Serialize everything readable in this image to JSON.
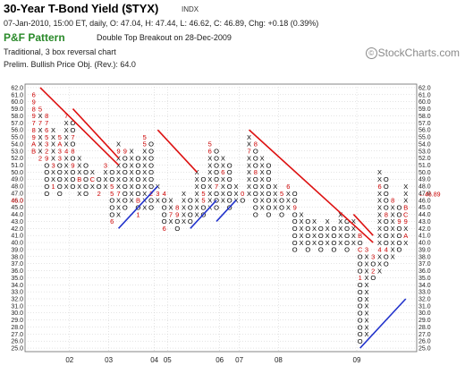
{
  "header": {
    "title": "30-Year T-Bond Yield ($TYX)",
    "exchange": "INDX",
    "ohlc_line": "07-Jan-2010, 15:00 ET, daily, O: 47.04, H: 47.44, L: 46.62, C: 46.89, Chg: +0.18 (0.39%)",
    "pf_name": "P&F Pattern",
    "pf_signal": "Double Top Breakout on 28-Dec-2009",
    "meta_line1": "Traditional, 3 box reversal chart",
    "meta_line2": "Prelim. Bullish Price Obj. (Rev.): 64.0",
    "logo": "StockCharts.com",
    "logo_mark": "©"
  },
  "colors": {
    "x_mark": "#000000",
    "o_mark": "#000000",
    "month_mark": "#cc0000",
    "resistance_line": "#dd1111",
    "support_line": "#2233cc",
    "grid": "#c8c8c8",
    "title_green": "#2a8a2a",
    "last_price": "#cc0000"
  },
  "chart_data": {
    "type": "point-and-figure",
    "box_size": 1.0,
    "reversal": 3,
    "y_range": [
      25,
      62
    ],
    "y_ticks": [
      "25.0",
      "26.0",
      "27.0",
      "28.0",
      "29.0",
      "30.0",
      "31.0",
      "32.0",
      "33.0",
      "34.0",
      "35.0",
      "36.0",
      "37.0",
      "38.0",
      "39.0",
      "40.0",
      "41.0",
      "42.0",
      "43.0",
      "44.0",
      "45.0",
      "46.0",
      "47.0",
      "48.0",
      "49.0",
      "50.0",
      "51.0",
      "52.0",
      "53.0",
      "54.0",
      "55.0",
      "56.0",
      "57.0",
      "58.0",
      "59.0",
      "60.0",
      "61.0",
      "62.0"
    ],
    "x_labels": [
      {
        "label": "02",
        "col": 6
      },
      {
        "label": "03",
        "col": 12
      },
      {
        "label": "04",
        "col": 19
      },
      {
        "label": "05",
        "col": 21
      },
      {
        "label": "06",
        "col": 29
      },
      {
        "label": "07",
        "col": 32
      },
      {
        "label": "08",
        "col": 38
      },
      {
        "label": "09",
        "col": 50
      }
    ],
    "last_price": "46.89",
    "columns": [
      {
        "type": "O",
        "low": 53,
        "high": 61,
        "labels": {
          "61": "6",
          "60": "9",
          "59": "8",
          "58": "9",
          "57": "7",
          "56": "8",
          "55": "9",
          "54": "A",
          "53": "B"
        }
      },
      {
        "type": "X",
        "low": 52,
        "high": 59,
        "labels": {
          "52": "2",
          "57": "7",
          "59": "5"
        }
      },
      {
        "type": "O",
        "low": 47,
        "high": 58,
        "labels": {
          "58": "8",
          "57": "7",
          "56": "6",
          "55": "5",
          "54": "3",
          "53": "2",
          "52": "9"
        }
      },
      {
        "type": "X",
        "low": 48,
        "high": 56,
        "labels": {
          "48": "1",
          "51": "3"
        }
      },
      {
        "type": "O",
        "low": 47,
        "high": 55,
        "labels": {
          "55": "5",
          "54": "A",
          "53": "3",
          "52": "3"
        }
      },
      {
        "type": "X",
        "low": 48,
        "high": 58,
        "labels": {
          "53": "4",
          "58": "7"
        }
      },
      {
        "type": "O",
        "low": 48,
        "high": 57,
        "labels": {
          "55": "7",
          "53": "8",
          "51": "9"
        }
      },
      {
        "type": "X",
        "low": 47,
        "high": 52,
        "labels": {
          "49": "B"
        }
      },
      {
        "type": "O",
        "low": 47,
        "high": 51
      },
      {
        "type": "X",
        "low": 48,
        "high": 50,
        "labels": {
          "49": "C"
        }
      },
      {
        "type": "O",
        "low": 47,
        "high": 49,
        "labels": {
          "47": "2"
        }
      },
      {
        "type": "X",
        "low": 48,
        "high": 51,
        "labels": {
          "51": "3"
        }
      },
      {
        "type": "O",
        "low": 43,
        "high": 50,
        "labels": {
          "48": "5",
          "47": "5",
          "43": "6"
        }
      },
      {
        "type": "X",
        "low": 44,
        "high": 54,
        "labels": {
          "47": "7",
          "53": "9"
        }
      },
      {
        "type": "O",
        "low": 45,
        "high": 53,
        "labels": {
          "53": "9"
        }
      },
      {
        "type": "X",
        "low": 46,
        "high": 53
      },
      {
        "type": "O",
        "low": 44,
        "high": 52,
        "labels": {
          "46": "B",
          "44": "1"
        }
      },
      {
        "type": "X",
        "low": 45,
        "high": 55,
        "labels": {
          "55": "5",
          "54": "5"
        }
      },
      {
        "type": "O",
        "low": 45,
        "high": 54,
        "labels": {
          "47": "2"
        }
      },
      {
        "type": "X",
        "low": 46,
        "high": 48,
        "labels": {
          "47": "3"
        }
      },
      {
        "type": "O",
        "low": 42,
        "high": 47,
        "labels": {
          "47": "4",
          "42": "6"
        }
      },
      {
        "type": "X",
        "low": 43,
        "high": 46,
        "labels": {
          "44": "7"
        }
      },
      {
        "type": "O",
        "low": 42,
        "high": 45,
        "labels": {
          "45": "8",
          "44": "9"
        }
      },
      {
        "type": "X",
        "low": 43,
        "high": 47
      },
      {
        "type": "O",
        "low": 43,
        "high": 46
      },
      {
        "type": "X",
        "low": 44,
        "high": 50
      },
      {
        "type": "O",
        "low": 44,
        "high": 49,
        "labels": {
          "47": "5",
          "46": "5"
        }
      },
      {
        "type": "X",
        "low": 45,
        "high": 54,
        "labels": {
          "54": "5",
          "53": "6"
        }
      },
      {
        "type": "O",
        "low": 45,
        "high": 53,
        "labels": {
          "48": "7"
        }
      },
      {
        "type": "X",
        "low": 46,
        "high": 52,
        "labels": {
          "50": "6"
        }
      },
      {
        "type": "O",
        "low": 45,
        "high": 51
      },
      {
        "type": "X",
        "low": 46,
        "high": 48
      },
      {
        "type": "O",
        "low": 46,
        "high": 47,
        "labels": {
          "47": "0"
        }
      },
      {
        "type": "X",
        "low": 47,
        "high": 55,
        "labels": {
          "53": "7"
        }
      },
      {
        "type": "O",
        "low": 44,
        "high": 54,
        "labels": {
          "54": "8",
          "50": "8"
        }
      },
      {
        "type": "X",
        "low": 45,
        "high": 52
      },
      {
        "type": "O",
        "low": 44,
        "high": 51
      },
      {
        "type": "X",
        "low": 45,
        "high": 48
      },
      {
        "type": "O",
        "low": 44,
        "high": 47,
        "labels": {
          "47": "5"
        }
      },
      {
        "type": "X",
        "low": 45,
        "high": 48,
        "labels": {
          "48": "6"
        }
      },
      {
        "type": "O",
        "low": 39,
        "high": 47,
        "labels": {
          "45": "9"
        }
      },
      {
        "type": "X",
        "low": 40,
        "high": 44
      },
      {
        "type": "O",
        "low": 39,
        "high": 43
      },
      {
        "type": "X",
        "low": 40,
        "high": 43
      },
      {
        "type": "O",
        "low": 39,
        "high": 42
      },
      {
        "type": "X",
        "low": 40,
        "high": 43
      },
      {
        "type": "O",
        "low": 39,
        "high": 42
      },
      {
        "type": "X",
        "low": 40,
        "high": 44
      },
      {
        "type": "O",
        "low": 39,
        "high": 43
      },
      {
        "type": "X",
        "low": 40,
        "high": 43
      },
      {
        "type": "O",
        "low": 26,
        "high": 41,
        "labels": {
          "41": "B",
          "39": "C",
          "35": "1"
        }
      },
      {
        "type": "X",
        "low": 27,
        "high": 39,
        "labels": {
          "39": "3"
        }
      },
      {
        "type": "O",
        "low": 35,
        "high": 38,
        "labels": {
          "38": "3",
          "36": "2"
        }
      },
      {
        "type": "X",
        "low": 36,
        "high": 50,
        "labels": {
          "39": "4",
          "48": "6"
        }
      },
      {
        "type": "O",
        "low": 37,
        "high": 49,
        "labels": {
          "39": "4",
          "44": "8"
        }
      },
      {
        "type": "X",
        "low": 38,
        "high": 46,
        "labels": {
          "46": "8"
        }
      },
      {
        "type": "O",
        "low": 39,
        "high": 45,
        "labels": {
          "43": "9"
        }
      },
      {
        "type": "X",
        "low": 40,
        "high": 48,
        "labels": {
          "45": "B",
          "44": "C",
          "43": "9",
          "41": "A"
        }
      }
    ],
    "trend_lines": [
      {
        "kind": "resistance",
        "x": [
          1,
          13
        ],
        "y": [
          62,
          51
        ]
      },
      {
        "kind": "resistance",
        "x": [
          6,
          13
        ],
        "y": [
          59,
          52
        ]
      },
      {
        "kind": "resistance",
        "x": [
          19,
          25
        ],
        "y": [
          56,
          50
        ]
      },
      {
        "kind": "resistance",
        "x": [
          33,
          52
        ],
        "y": [
          56,
          40
        ]
      },
      {
        "kind": "resistance",
        "x": [
          49,
          52
        ],
        "y": [
          44,
          41
        ]
      },
      {
        "kind": "support",
        "x": [
          13,
          19
        ],
        "y": [
          42,
          48
        ]
      },
      {
        "kind": "support",
        "x": [
          24,
          28
        ],
        "y": [
          42,
          46
        ]
      },
      {
        "kind": "support",
        "x": [
          28,
          31
        ],
        "y": [
          43,
          46
        ]
      },
      {
        "kind": "support",
        "x": [
          50,
          57
        ],
        "y": [
          25,
          32
        ]
      }
    ]
  }
}
